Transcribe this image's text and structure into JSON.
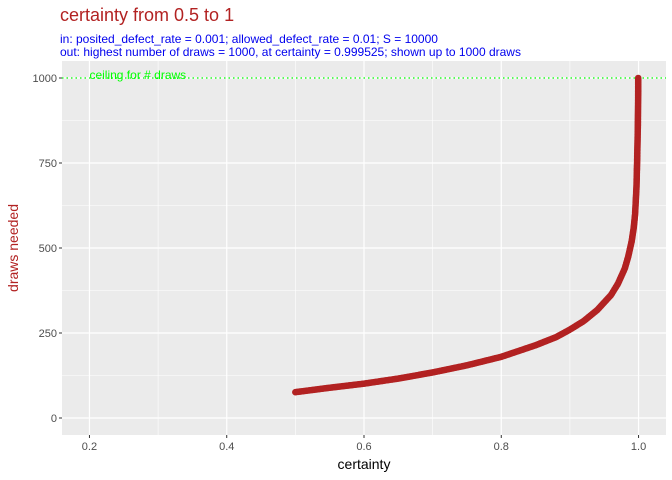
{
  "chart_data": {
    "type": "scatter",
    "title": "certainty from 0.5 to 1",
    "subtitle_lines": [
      "in:   posited_defect_rate = 0.001; allowed_defect_rate = 0.01; S = 10000",
      "out: highest number of draws = 1000, at certainty = 0.999525; shown up to 1000 draws"
    ],
    "xlabel": "certainty",
    "ylabel": "draws needed",
    "xlim": [
      0.16,
      1.04
    ],
    "ylim": [
      -50,
      1050
    ],
    "x_ticks": [
      0.2,
      0.4,
      0.6,
      0.8,
      1.0
    ],
    "x_tick_labels": [
      "0.2",
      "0.4",
      "0.6",
      "0.8",
      "1.0"
    ],
    "y_ticks": [
      0,
      250,
      500,
      750,
      1000
    ],
    "y_tick_labels": [
      "0",
      "250",
      "500",
      "750",
      "1000"
    ],
    "grid": true,
    "series": [
      {
        "color": "#b22222",
        "points": [
          [
            0.5,
            76
          ],
          [
            0.55,
            89
          ],
          [
            0.6,
            101
          ],
          [
            0.65,
            116
          ],
          [
            0.7,
            134
          ],
          [
            0.75,
            155
          ],
          [
            0.8,
            180
          ],
          [
            0.85,
            214
          ],
          [
            0.88,
            238
          ],
          [
            0.9,
            260
          ],
          [
            0.92,
            285
          ],
          [
            0.94,
            318
          ],
          [
            0.96,
            362
          ],
          [
            0.97,
            395
          ],
          [
            0.98,
            440
          ],
          [
            0.985,
            475
          ],
          [
            0.99,
            520
          ],
          [
            0.993,
            560
          ],
          [
            0.995,
            600
          ],
          [
            0.997,
            680
          ],
          [
            0.998,
            760
          ],
          [
            0.999,
            860
          ],
          [
            0.9995,
            960
          ],
          [
            0.999525,
            1000
          ]
        ]
      }
    ],
    "reference_line": {
      "y": 1000,
      "label": "ceiling for # draws",
      "color": "#00ff00"
    }
  }
}
